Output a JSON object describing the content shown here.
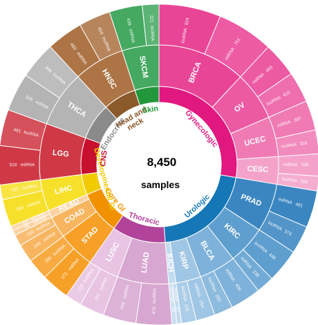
{
  "chart_data": {
    "type": "sunburst",
    "center": {
      "value": "8,450",
      "label": "samples"
    },
    "groups": [
      {
        "name": "Gynecologic",
        "color": "#e0187f",
        "cancers": [
          {
            "name": "BRCA",
            "color": "#e94597",
            "lncRNA": 824,
            "miRNA": 751
          },
          {
            "name": "OV",
            "color": "#ec5aa3",
            "miRNA": 463,
            "lncRNA": 410
          },
          {
            "name": "UCEC",
            "color": "#f07bb4",
            "miRNA": 397,
            "lncRNA": 318
          },
          {
            "name": "CESC",
            "color": "#f4a2ca",
            "miRNA": 295,
            "lncRNA": 196
          }
        ]
      },
      {
        "name": "Urologic",
        "color": "#1577b6",
        "cancers": [
          {
            "name": "PRAD",
            "color": "#3b86c0",
            "miRNA": 491,
            "lncRNA": 373
          },
          {
            "name": "KIRC",
            "color": "#5f9fcf",
            "lncRNA": 448,
            "miRNA": 238
          },
          {
            "name": "BLCA",
            "color": "#7eb2da",
            "miRNA": 406,
            "lncRNA": 250
          },
          {
            "name": "KIRP",
            "color": "#a0c6e5",
            "miRNA": 254,
            "lncRNA": 195
          },
          {
            "name": "KICH",
            "color": "#c3dbef",
            "miRNA": 63,
            "lncRNA": 66
          }
        ]
      },
      {
        "name": "Thoracic",
        "color": "#b1439a",
        "cancers": [
          {
            "name": "LUAD",
            "color": "#d7a7d1",
            "lncRNA": 476,
            "miRNA": 439
          },
          {
            "name": "LUSC",
            "color": "#e8c3e2",
            "miRNA": 331,
            "lncRNA": 219
          }
        ]
      },
      {
        "name": "Core GI",
        "color": "#f29100",
        "cancers": [
          {
            "name": "STAD",
            "color": "#f6a028",
            "miRNA": 371,
            "lncRNA": 285
          },
          {
            "name": "COAD",
            "color": "#f8b560",
            "miRNA": 243,
            "lncRNA": 150
          },
          {
            "name": "READ",
            "color": "#fbd2a1",
            "miRNA": 69,
            "lncRNA": 60
          }
        ]
      },
      {
        "name": "Developmental GI",
        "color": "#f1cb00",
        "cancers": [
          {
            "name": "LIHC",
            "color": "#f7e02a",
            "miRNA": 366,
            "lncRNA": 197
          }
        ]
      },
      {
        "name": "CNS",
        "color": "#c8102e",
        "cancers": [
          {
            "name": "LGG",
            "color": "#cf3946",
            "miRNA": 519,
            "lncRNA": 481
          }
        ]
      },
      {
        "name": "Endocrine",
        "color": "#8a8a8a",
        "cancers": [
          {
            "name": "THCA",
            "color": "#b4b4b4",
            "miRNA": 509,
            "lncRNA": 496
          }
        ]
      },
      {
        "name": "Head and neck",
        "color": "#8b5a2b",
        "cancers": [
          {
            "name": "HNSC",
            "color": "#ad7446",
            "miRNA": 483,
            "lncRNA": 424
          }
        ]
      },
      {
        "name": "Skin",
        "color": "#22973c",
        "cancers": [
          {
            "name": "SKCM",
            "color": "#45a961",
            "miRNA": 439,
            "lncRNA": 221
          }
        ]
      }
    ]
  }
}
